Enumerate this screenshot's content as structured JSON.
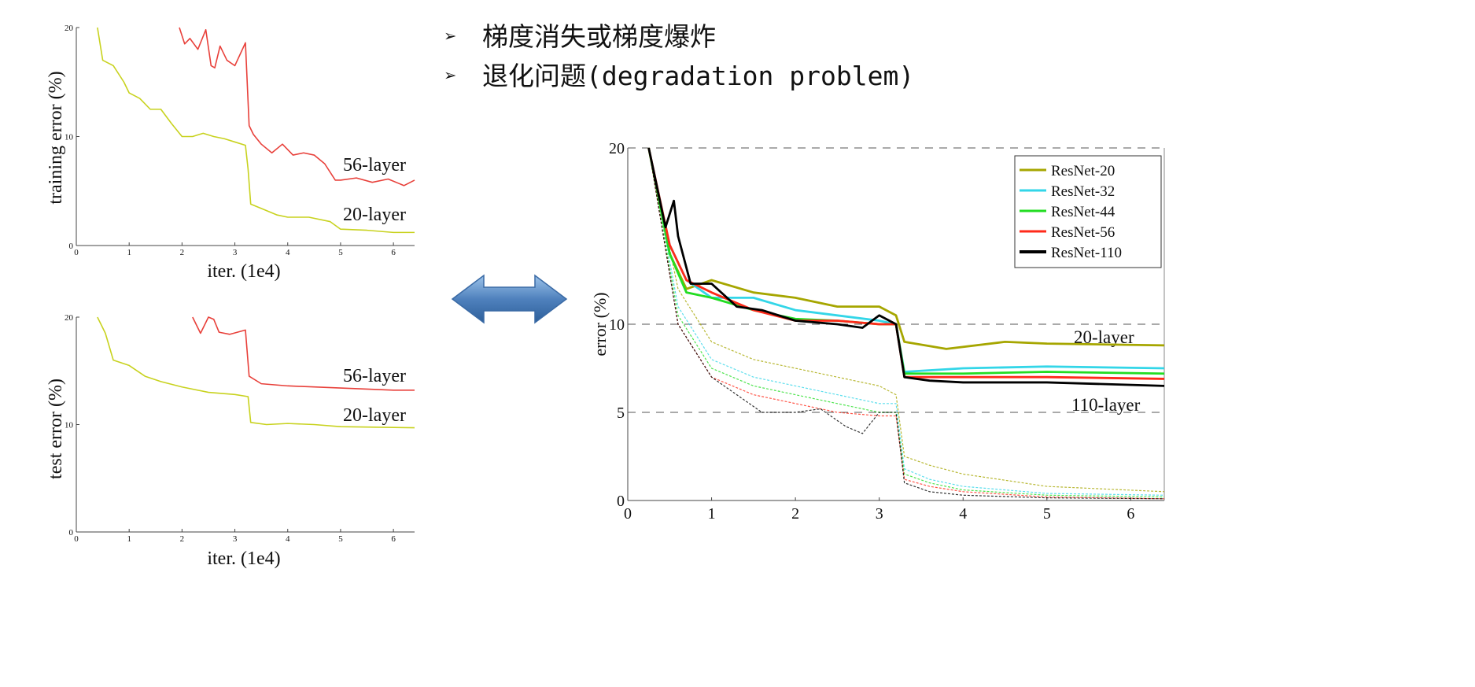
{
  "title": {
    "bullets": [
      "梯度消失或梯度爆炸",
      "退化问题(degradation problem)"
    ],
    "bullet_icon": "arrowhead-bullet-icon"
  },
  "connector": {
    "icon": "double-arrow-icon",
    "color": "#4f81bd"
  },
  "chart_data": [
    {
      "type": "line",
      "ylabel": "training error (%)",
      "xlabel": "iter. (1e4)",
      "xlim": [
        0,
        6.4
      ],
      "ylim": [
        0,
        20
      ],
      "xticks": [
        0,
        1,
        2,
        3,
        4,
        5,
        6
      ],
      "yticks": [
        0,
        10,
        20
      ],
      "grid": false,
      "series": [
        {
          "name": "56-layer",
          "color": "#e8403a",
          "x": [
            1.95,
            2.05,
            2.15,
            2.3,
            2.45,
            2.55,
            2.62,
            2.72,
            2.85,
            3.0,
            3.2,
            3.27,
            3.35,
            3.5,
            3.7,
            3.9,
            4.1,
            4.3,
            4.5,
            4.7,
            4.9,
            5.0,
            5.3,
            5.6,
            5.9,
            6.2,
            6.4
          ],
          "y": [
            20,
            18.5,
            19,
            18,
            19.8,
            16.5,
            16.3,
            18.3,
            17,
            16.5,
            18.6,
            11,
            10.2,
            9.3,
            8.5,
            9.3,
            8.3,
            8.5,
            8.3,
            7.5,
            6,
            6,
            6.2,
            5.8,
            6.1,
            5.5,
            6
          ]
        },
        {
          "name": "20-layer",
          "color": "#c8d21e",
          "x": [
            0.4,
            0.5,
            0.7,
            0.9,
            1.0,
            1.2,
            1.4,
            1.6,
            1.8,
            2.0,
            2.2,
            2.4,
            2.6,
            2.8,
            3.0,
            3.2,
            3.25,
            3.3,
            3.5,
            3.8,
            4.0,
            4.4,
            4.8,
            5.0,
            5.5,
            6.0,
            6.4
          ],
          "y": [
            20,
            17,
            16.5,
            15,
            14,
            13.5,
            12.5,
            12.5,
            11.2,
            10,
            10,
            10.3,
            10,
            9.8,
            9.5,
            9.2,
            7,
            3.8,
            3.4,
            2.8,
            2.6,
            2.6,
            2.2,
            1.5,
            1.4,
            1.2,
            1.2
          ]
        }
      ]
    },
    {
      "type": "line",
      "ylabel": "test error (%)",
      "xlabel": "iter. (1e4)",
      "xlim": [
        0,
        6.4
      ],
      "ylim": [
        0,
        20
      ],
      "xticks": [
        0,
        1,
        2,
        3,
        4,
        5,
        6
      ],
      "yticks": [
        0,
        10,
        20
      ],
      "grid": false,
      "series": [
        {
          "name": "56-layer",
          "color": "#e8403a",
          "x": [
            2.2,
            2.35,
            2.5,
            2.6,
            2.7,
            2.9,
            3.2,
            3.27,
            3.5,
            4.0,
            4.5,
            5.0,
            5.5,
            6.0,
            6.4
          ],
          "y": [
            20,
            18.5,
            20,
            19.8,
            18.6,
            18.4,
            18.8,
            14.5,
            13.8,
            13.6,
            13.5,
            13.4,
            13.3,
            13.2,
            13.2
          ]
        },
        {
          "name": "20-layer",
          "color": "#c8d21e",
          "x": [
            0.4,
            0.55,
            0.7,
            1.0,
            1.3,
            1.6,
            2.0,
            2.5,
            3.0,
            3.25,
            3.3,
            3.6,
            4.0,
            4.5,
            5.0,
            6.4
          ],
          "y": [
            20,
            18.5,
            16,
            15.5,
            14.5,
            14,
            13.5,
            13,
            12.8,
            12.6,
            10.2,
            10,
            10.1,
            10,
            9.8,
            9.7
          ]
        }
      ]
    },
    {
      "type": "line",
      "ylabel": "error (%)",
      "xlim": [
        0,
        6.4
      ],
      "ylim": [
        0,
        20
      ],
      "xticks": [
        0,
        1,
        2,
        3,
        4,
        5,
        6
      ],
      "yticks": [
        0,
        5,
        10,
        20
      ],
      "grid": true,
      "legend": "top-right",
      "annotations": [
        "20-layer",
        "110-layer"
      ],
      "series": [
        {
          "name": "ResNet-20",
          "color": "#a6a600",
          "x": [
            0.25,
            0.5,
            0.7,
            1.0,
            1.5,
            2.0,
            2.5,
            3.0,
            3.2,
            3.3,
            3.8,
            4.5,
            5.0,
            6.4
          ],
          "y": [
            20,
            14,
            12,
            12.5,
            11.8,
            11.5,
            11,
            11,
            10.5,
            9,
            8.6,
            9,
            8.9,
            8.8
          ],
          "train_x": [
            0.25,
            0.6,
            1.0,
            1.5,
            2.0,
            2.5,
            3.0,
            3.2,
            3.3,
            3.6,
            4.0,
            5.0,
            6.4
          ],
          "train_y": [
            20,
            12,
            9,
            8,
            7.5,
            7,
            6.5,
            6,
            2.5,
            2,
            1.5,
            0.8,
            0.5
          ]
        },
        {
          "name": "ResNet-32",
          "color": "#33d6e8",
          "x": [
            0.25,
            0.5,
            0.7,
            1.0,
            1.5,
            2.0,
            2.5,
            3.0,
            3.2,
            3.3,
            4.0,
            5.0,
            6.4
          ],
          "y": [
            20,
            14.5,
            12.5,
            11.5,
            11.5,
            10.8,
            10.5,
            10.2,
            10,
            7.3,
            7.5,
            7.6,
            7.5
          ],
          "train_x": [
            0.25,
            0.6,
            1.0,
            1.5,
            2.0,
            2.5,
            3.0,
            3.2,
            3.3,
            3.6,
            4.0,
            5.0,
            6.4
          ],
          "train_y": [
            20,
            11,
            8,
            7,
            6.5,
            6,
            5.5,
            5.5,
            1.8,
            1.2,
            0.8,
            0.4,
            0.3
          ]
        },
        {
          "name": "ResNet-44",
          "color": "#22dd22",
          "x": [
            0.25,
            0.5,
            0.7,
            1.0,
            1.5,
            2.0,
            2.5,
            3.0,
            3.2,
            3.3,
            4.0,
            5.0,
            6.4
          ],
          "y": [
            20,
            14,
            11.8,
            11.5,
            10.8,
            10.3,
            10.2,
            10,
            10,
            7.2,
            7.2,
            7.3,
            7.2
          ],
          "train_x": [
            0.25,
            0.6,
            1.0,
            1.5,
            2.0,
            2.5,
            3.0,
            3.2,
            3.3,
            3.6,
            4.0,
            5.0,
            6.4
          ],
          "train_y": [
            20,
            10.5,
            7.5,
            6.5,
            6,
            5.5,
            5,
            5,
            1.5,
            1,
            0.6,
            0.3,
            0.2
          ]
        },
        {
          "name": "ResNet-56",
          "color": "#ff2a1a",
          "x": [
            0.25,
            0.5,
            0.7,
            1.0,
            1.5,
            2.0,
            2.5,
            3.0,
            3.2,
            3.3,
            4.0,
            5.0,
            6.4
          ],
          "y": [
            20,
            14.5,
            12.5,
            11.8,
            10.8,
            10.2,
            10.2,
            10,
            10,
            7,
            7,
            7,
            6.9
          ],
          "train_x": [
            0.25,
            0.6,
            1.0,
            1.5,
            2.0,
            2.5,
            3.0,
            3.2,
            3.3,
            3.6,
            4.0,
            5.0,
            6.4
          ],
          "train_y": [
            20,
            10,
            7,
            6,
            5.5,
            5,
            4.8,
            4.8,
            1.2,
            0.8,
            0.5,
            0.2,
            0.1
          ]
        },
        {
          "name": "ResNet-110",
          "color": "#000000",
          "x": [
            0.25,
            0.45,
            0.55,
            0.6,
            0.75,
            1.0,
            1.3,
            1.6,
            2.0,
            2.5,
            2.8,
            3.0,
            3.2,
            3.3,
            3.6,
            4.0,
            5.0,
            6.4
          ],
          "y": [
            20,
            15.5,
            17,
            15,
            12.3,
            12.3,
            11,
            10.8,
            10.2,
            10,
            9.8,
            10.5,
            10,
            7,
            6.8,
            6.7,
            6.7,
            6.5
          ],
          "train_x": [
            0.25,
            0.6,
            1.0,
            1.3,
            1.6,
            2.0,
            2.3,
            2.6,
            2.8,
            3.0,
            3.2,
            3.3,
            3.6,
            4.0,
            5.0,
            6.4
          ],
          "train_y": [
            20,
            10,
            7,
            6,
            5,
            5,
            5.2,
            4.2,
            3.8,
            5,
            5,
            1,
            0.5,
            0.3,
            0.15,
            0.1
          ]
        }
      ]
    }
  ]
}
